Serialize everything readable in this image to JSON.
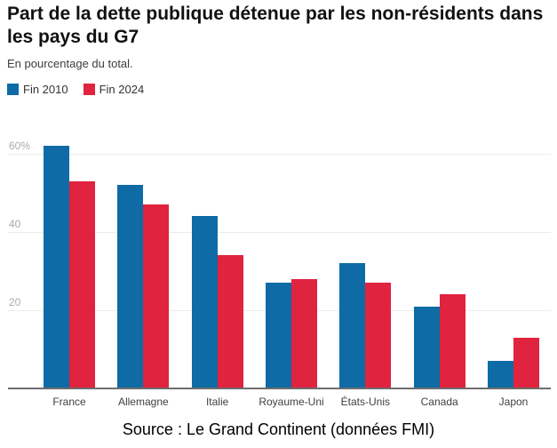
{
  "chart_data": {
    "type": "bar",
    "title": "Part de la dette publique détenue par les non-résidents dans les pays du G7",
    "subtitle": "En pourcentage du total.",
    "categories": [
      "France",
      "Allemagne",
      "Italie",
      "Royaume-Uni",
      "États-Unis",
      "Canada",
      "Japon"
    ],
    "series": [
      {
        "name": "Fin 2010",
        "color": "#0e6ba5",
        "values": [
          62,
          52,
          44,
          27,
          32,
          21,
          7
        ]
      },
      {
        "name": "Fin 2024",
        "color": "#e0233e",
        "values": [
          53,
          47,
          34,
          28,
          27,
          24,
          13
        ]
      }
    ],
    "xlabel": "",
    "ylabel": "",
    "ylim": [
      0,
      65
    ],
    "yticks": [
      {
        "value": 20,
        "label": "20"
      },
      {
        "value": 40,
        "label": "40"
      },
      {
        "value": 60,
        "label": "60%"
      }
    ],
    "grid": true,
    "legend_position": "top-left"
  },
  "footer": {
    "source": "Source : Le Grand Continent (données FMI)"
  },
  "colors": {
    "grid": "#ececec",
    "axis": "#6e6e6e",
    "tick_label": "#ababab",
    "category_label": "#404040",
    "title": "#111111",
    "subtitle": "#3c3c3c"
  }
}
